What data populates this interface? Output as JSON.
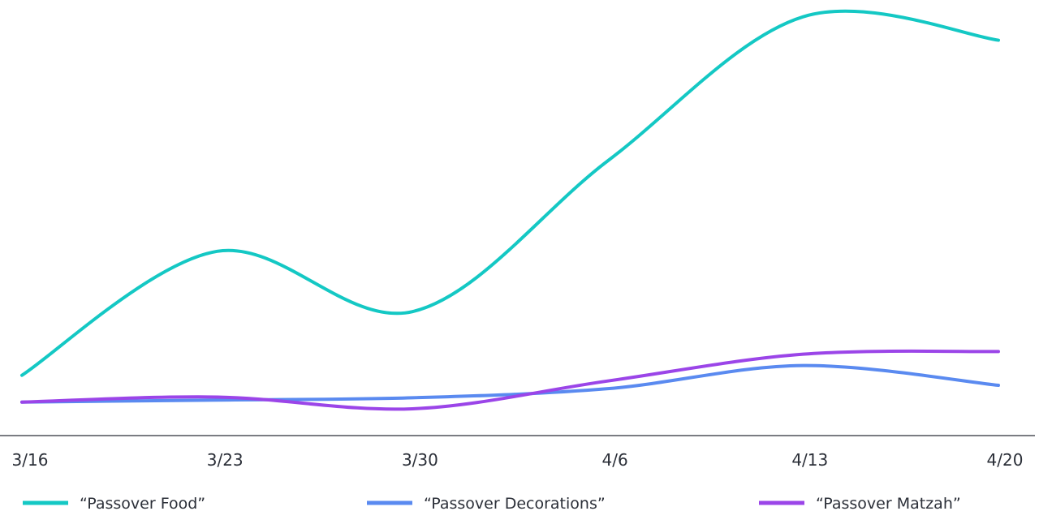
{
  "chart_data": {
    "type": "line",
    "categories": [
      "3/16",
      "3/23",
      "3/30",
      "4/6",
      "4/13",
      "4/20"
    ],
    "series": [
      {
        "name": "“Passover Food”",
        "color": "#14c8c4",
        "values": [
          8,
          45,
          27,
          72,
          115,
          108
        ]
      },
      {
        "name": "“Passover Decorations”",
        "color": "#5a8af0",
        "values": [
          0,
          0.6,
          1.3,
          4.0,
          10.9,
          5.0
        ]
      },
      {
        "name": "“Passover Matzah”",
        "color": "#9b45e8",
        "values": [
          0,
          1.5,
          -2.0,
          6.3,
          14.3,
          15.1
        ]
      }
    ],
    "ylim": [
      -10,
      120
    ],
    "grid": false,
    "legend": "bottom",
    "xlabel": "",
    "ylabel": ""
  }
}
